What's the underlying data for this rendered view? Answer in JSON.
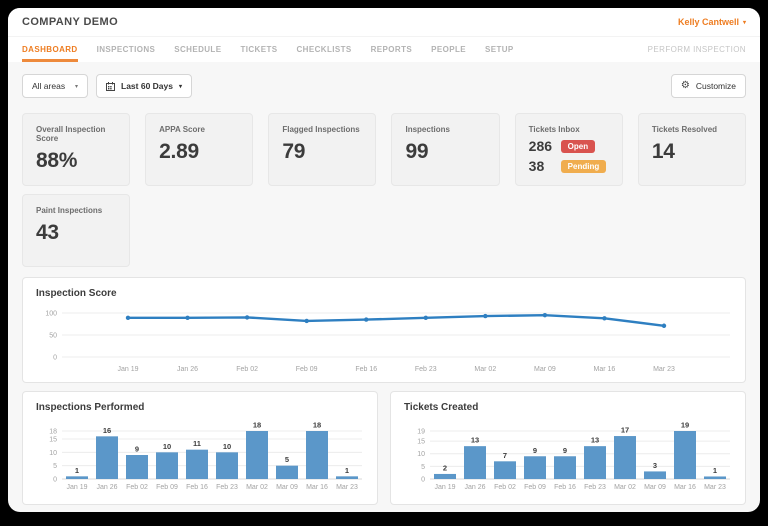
{
  "header": {
    "title": "COMPANY DEMO",
    "user": "Kelly Cantwell",
    "perform_inspection": "PERFORM INSPECTION"
  },
  "nav": {
    "tabs": [
      {
        "label": "DASHBOARD",
        "active": true
      },
      {
        "label": "INSPECTIONS",
        "active": false
      },
      {
        "label": "SCHEDULE",
        "active": false
      },
      {
        "label": "TICKETS",
        "active": false
      },
      {
        "label": "CHECKLISTS",
        "active": false
      },
      {
        "label": "REPORTS",
        "active": false
      },
      {
        "label": "PEOPLE",
        "active": false
      },
      {
        "label": "SETUP",
        "active": false
      }
    ]
  },
  "filters": {
    "area_select": "All areas",
    "date_range": "Last 60 Days",
    "customize": "Customize"
  },
  "kpis": [
    {
      "label": "Overall Inspection Score",
      "value": "88%"
    },
    {
      "label": "APPA Score",
      "value": "2.89"
    },
    {
      "label": "Flagged Inspections",
      "value": "79"
    },
    {
      "label": "Inspections",
      "value": "99"
    },
    {
      "label": "Tickets Inbox",
      "rows": [
        {
          "value": "286",
          "badge": "Open",
          "badge_color": "#d9534f"
        },
        {
          "value": "38",
          "badge": "Pending",
          "badge_color": "#f0ad4e"
        }
      ]
    },
    {
      "label": "Tickets Resolved",
      "value": "14"
    },
    {
      "label": "Paint Inspections",
      "value": "43"
    }
  ],
  "colors": {
    "accent_orange": "#ee7d22",
    "bar_blue": "#5b97c9",
    "line_blue": "#2e7fc1",
    "badge_open": "#d9534f",
    "badge_pending": "#f0ad4e",
    "axis_text": "#a3a3a3",
    "gridline": "#ececec"
  },
  "chart_data": [
    {
      "type": "line",
      "title": "Inspection Score",
      "categories": [
        "Jan 19",
        "Jan 26",
        "Feb 02",
        "Feb 09",
        "Feb 16",
        "Feb 23",
        "Mar 02",
        "Mar 09",
        "Mar 16",
        "Mar 23"
      ],
      "values": [
        89,
        89,
        90,
        82,
        85,
        89,
        93,
        95,
        88,
        71
      ],
      "yticks": [
        0,
        50,
        100
      ],
      "ylim": [
        0,
        118
      ],
      "xlabel": "",
      "ylabel": "",
      "grid": true,
      "legend": false,
      "color": "#2e7fc1"
    },
    {
      "type": "bar",
      "title": "Inspections Performed",
      "categories": [
        "Jan 19",
        "Jan 26",
        "Feb 02",
        "Feb 09",
        "Feb 16",
        "Feb 23",
        "Mar 02",
        "Mar 09",
        "Mar 16",
        "Mar 23"
      ],
      "values": [
        1,
        16,
        9,
        10,
        11,
        10,
        18,
        5,
        18,
        1
      ],
      "yticks": [
        0,
        5,
        10,
        15,
        18
      ],
      "ylim": [
        0,
        19.8
      ],
      "xlabel": "",
      "ylabel": "",
      "grid": true,
      "legend": false,
      "color": "#5b97c9"
    },
    {
      "type": "bar",
      "title": "Tickets Created",
      "categories": [
        "Jan 19",
        "Jan 26",
        "Feb 02",
        "Feb 09",
        "Feb 16",
        "Feb 23",
        "Mar 02",
        "Mar 09",
        "Mar 16",
        "Mar 23"
      ],
      "values": [
        2,
        13,
        7,
        9,
        9,
        13,
        17,
        3,
        19,
        1
      ],
      "yticks": [
        0,
        5,
        10,
        15,
        19
      ],
      "ylim": [
        0,
        20.9
      ],
      "xlabel": "",
      "ylabel": "",
      "grid": true,
      "legend": false,
      "color": "#5b97c9"
    }
  ]
}
